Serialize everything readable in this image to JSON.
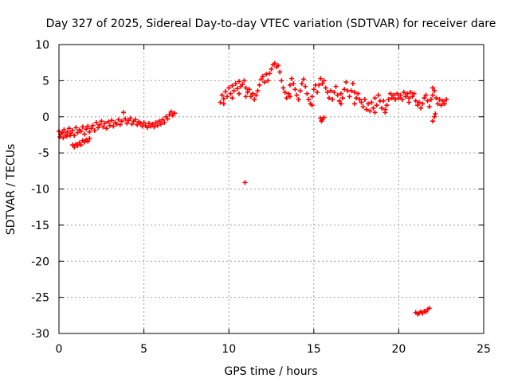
{
  "chart_data": {
    "type": "scatter",
    "title": "Day 327 of 2025, Sidereal Day-to-day VTEC variation (SDTVAR) for receiver dare",
    "xlabel": "GPS time / hours",
    "ylabel": "SDTVAR / TECUs",
    "xlim": [
      0,
      25
    ],
    "ylim": [
      -30,
      10
    ],
    "xticks": [
      0,
      5,
      10,
      15,
      20,
      25
    ],
    "yticks": [
      10,
      5,
      0,
      -5,
      -10,
      -15,
      -20,
      -25,
      -30
    ],
    "grid": true,
    "marker": "+",
    "series_color": "#ff0000",
    "series": [
      {
        "name": "SDTVAR",
        "points": [
          [
            0.0,
            -2.0
          ],
          [
            0.1,
            -2.4
          ],
          [
            0.2,
            -2.2
          ],
          [
            0.3,
            -1.8
          ],
          [
            0.4,
            -2.5
          ],
          [
            0.5,
            -2.1
          ],
          [
            0.6,
            -1.6
          ],
          [
            0.7,
            -2.3
          ],
          [
            0.8,
            -1.9
          ],
          [
            0.9,
            -2.6
          ],
          [
            1.0,
            -1.5
          ],
          [
            1.1,
            -2.2
          ],
          [
            1.2,
            -1.8
          ],
          [
            1.3,
            -2.0
          ],
          [
            1.4,
            -1.4
          ],
          [
            1.5,
            -2.4
          ],
          [
            1.6,
            -1.7
          ],
          [
            1.7,
            -1.3
          ],
          [
            1.8,
            -2.1
          ],
          [
            1.9,
            -1.6
          ],
          [
            2.0,
            -1.2
          ],
          [
            2.1,
            -1.9
          ],
          [
            2.2,
            -0.8
          ],
          [
            2.3,
            -1.5
          ],
          [
            2.4,
            -1.1
          ],
          [
            2.5,
            -0.6
          ],
          [
            2.6,
            -1.4
          ],
          [
            2.7,
            -0.9
          ],
          [
            2.8,
            -1.6
          ],
          [
            2.9,
            -0.7
          ],
          [
            3.0,
            -1.2
          ],
          [
            3.1,
            -0.5
          ],
          [
            3.2,
            -1.3
          ],
          [
            3.3,
            -0.8
          ],
          [
            3.4,
            -1.0
          ],
          [
            3.5,
            -0.4
          ],
          [
            3.6,
            -1.1
          ],
          [
            3.7,
            -0.6
          ],
          [
            3.8,
            0.6
          ],
          [
            3.9,
            -0.3
          ],
          [
            4.0,
            -0.9
          ],
          [
            4.1,
            -0.5
          ],
          [
            4.2,
            -0.2
          ],
          [
            4.3,
            -1.0
          ],
          [
            4.4,
            -0.6
          ],
          [
            4.5,
            -0.4
          ],
          [
            4.6,
            -1.1
          ],
          [
            4.7,
            -0.7
          ],
          [
            4.8,
            -0.9
          ],
          [
            4.9,
            -1.3
          ],
          [
            5.0,
            -0.8
          ],
          [
            5.1,
            -1.2
          ],
          [
            5.2,
            -1.5
          ],
          [
            5.3,
            -0.9
          ],
          [
            5.4,
            -1.3
          ],
          [
            5.5,
            -1.0
          ],
          [
            5.6,
            -1.4
          ],
          [
            5.7,
            -0.8
          ],
          [
            5.8,
            -1.2
          ],
          [
            5.9,
            -0.6
          ],
          [
            6.0,
            -1.0
          ],
          [
            6.1,
            -0.4
          ],
          [
            6.2,
            -0.8
          ],
          [
            6.3,
            0.0
          ],
          [
            6.4,
            -0.3
          ],
          [
            6.5,
            0.3
          ],
          [
            6.6,
            0.7
          ],
          [
            6.7,
            0.2
          ],
          [
            6.8,
            0.5
          ],
          [
            0.8,
            -3.9
          ],
          [
            0.9,
            -4.2
          ],
          [
            1.0,
            -3.8
          ],
          [
            1.1,
            -4.0
          ],
          [
            1.2,
            -3.6
          ],
          [
            1.3,
            -3.9
          ],
          [
            1.4,
            -3.3
          ],
          [
            1.5,
            -3.5
          ],
          [
            1.6,
            -3.2
          ],
          [
            1.7,
            -3.4
          ],
          [
            1.8,
            -3.0
          ],
          [
            0.05,
            -2.8
          ],
          [
            0.25,
            -2.9
          ],
          [
            0.45,
            -2.7
          ],
          [
            0.65,
            -2.6
          ],
          [
            9.5,
            2.0
          ],
          [
            9.6,
            3.0
          ],
          [
            9.7,
            2.5
          ],
          [
            9.8,
            3.5
          ],
          [
            9.9,
            2.8
          ],
          [
            10.0,
            4.0
          ],
          [
            10.1,
            3.2
          ],
          [
            10.2,
            4.3
          ],
          [
            10.3,
            3.6
          ],
          [
            10.4,
            4.6
          ],
          [
            10.5,
            3.9
          ],
          [
            10.6,
            4.9
          ],
          [
            10.7,
            4.2
          ],
          [
            10.8,
            4.5
          ],
          [
            10.9,
            5.0
          ],
          [
            11.0,
            4.0
          ],
          [
            11.1,
            3.4
          ],
          [
            11.2,
            3.8
          ],
          [
            11.3,
            2.8
          ],
          [
            11.4,
            3.2
          ],
          [
            11.5,
            2.4
          ],
          [
            11.6,
            3.0
          ],
          [
            11.7,
            3.6
          ],
          [
            11.8,
            4.4
          ],
          [
            11.9,
            5.2
          ],
          [
            12.0,
            5.6
          ],
          [
            12.1,
            4.8
          ],
          [
            12.2,
            5.9
          ],
          [
            12.3,
            5.0
          ],
          [
            12.4,
            6.0
          ],
          [
            12.5,
            6.6
          ],
          [
            12.6,
            7.2
          ],
          [
            12.7,
            7.4
          ],
          [
            12.8,
            6.9
          ],
          [
            12.9,
            7.1
          ],
          [
            13.0,
            6.2
          ],
          [
            13.1,
            5.0
          ],
          [
            13.2,
            4.0
          ],
          [
            13.3,
            3.4
          ],
          [
            13.4,
            2.6
          ],
          [
            13.5,
            3.2
          ],
          [
            13.6,
            4.4
          ],
          [
            13.7,
            5.3
          ],
          [
            13.8,
            4.6
          ],
          [
            13.9,
            3.8
          ],
          [
            14.0,
            3.0
          ],
          [
            14.1,
            2.4
          ],
          [
            14.2,
            3.6
          ],
          [
            14.3,
            4.6
          ],
          [
            14.4,
            5.2
          ],
          [
            14.5,
            4.2
          ],
          [
            14.6,
            3.2
          ],
          [
            14.7,
            2.4
          ],
          [
            14.8,
            1.8
          ],
          [
            14.9,
            2.8
          ],
          [
            15.0,
            3.8
          ],
          [
            15.1,
            4.4
          ],
          [
            15.2,
            3.4
          ],
          [
            15.3,
            4.4
          ],
          [
            15.4,
            5.3
          ],
          [
            15.5,
            4.6
          ],
          [
            15.6,
            5.0
          ],
          [
            15.7,
            4.0
          ],
          [
            15.8,
            3.4
          ],
          [
            15.9,
            2.6
          ],
          [
            16.0,
            3.6
          ],
          [
            16.1,
            2.4
          ],
          [
            16.2,
            3.4
          ],
          [
            16.3,
            4.2
          ],
          [
            16.4,
            3.0
          ],
          [
            16.5,
            2.2
          ],
          [
            16.6,
            3.2
          ],
          [
            16.7,
            2.6
          ],
          [
            16.8,
            3.8
          ],
          [
            16.9,
            4.8
          ],
          [
            17.0,
            3.6
          ],
          [
            17.1,
            2.8
          ],
          [
            17.2,
            3.6
          ],
          [
            17.3,
            4.6
          ],
          [
            17.4,
            3.4
          ],
          [
            17.5,
            2.6
          ],
          [
            17.6,
            3.2
          ],
          [
            17.7,
            2.4
          ],
          [
            17.8,
            2.0
          ],
          [
            17.9,
            1.4
          ],
          [
            18.0,
            2.4
          ],
          [
            18.1,
            1.0
          ],
          [
            18.2,
            1.8
          ],
          [
            18.3,
            0.8
          ],
          [
            18.4,
            2.0
          ],
          [
            18.5,
            1.2
          ],
          [
            18.6,
            2.6
          ],
          [
            18.7,
            1.6
          ],
          [
            18.8,
            3.0
          ],
          [
            18.9,
            2.2
          ],
          [
            19.0,
            1.2
          ],
          [
            19.1,
            2.2
          ],
          [
            19.2,
            1.0
          ],
          [
            19.3,
            1.6
          ],
          [
            19.4,
            2.4
          ],
          [
            19.5,
            3.2
          ],
          [
            19.6,
            2.6
          ],
          [
            19.7,
            3.0
          ],
          [
            19.8,
            2.4
          ],
          [
            19.9,
            3.2
          ],
          [
            20.0,
            2.6
          ],
          [
            20.1,
            3.0
          ],
          [
            20.2,
            2.4
          ],
          [
            20.3,
            3.4
          ],
          [
            20.4,
            2.8
          ],
          [
            20.5,
            3.2
          ],
          [
            20.6,
            2.6
          ],
          [
            20.7,
            3.4
          ],
          [
            20.8,
            2.8
          ],
          [
            20.9,
            3.2
          ],
          [
            21.0,
            2.2
          ],
          [
            21.1,
            1.6
          ],
          [
            21.2,
            2.0
          ],
          [
            21.3,
            1.2
          ],
          [
            21.4,
            1.8
          ],
          [
            21.5,
            2.6
          ],
          [
            21.6,
            3.0
          ],
          [
            21.7,
            2.2
          ],
          [
            21.8,
            1.4
          ],
          [
            21.9,
            2.4
          ],
          [
            22.0,
            3.0
          ],
          [
            22.1,
            3.6
          ],
          [
            22.2,
            2.6
          ],
          [
            22.3,
            1.8
          ],
          [
            22.4,
            2.4
          ],
          [
            22.5,
            1.6
          ],
          [
            22.6,
            2.2
          ],
          [
            22.7,
            1.8
          ],
          [
            22.8,
            2.4
          ],
          [
            9.7,
            1.8
          ],
          [
            10.2,
            2.6
          ],
          [
            10.6,
            3.2
          ],
          [
            11.0,
            2.8
          ],
          [
            13.6,
            2.8
          ],
          [
            14.9,
            1.6
          ],
          [
            16.6,
            1.8
          ],
          [
            17.4,
            1.8
          ],
          [
            18.6,
            0.6
          ],
          [
            19.2,
            0.6
          ],
          [
            20.6,
            2.0
          ],
          [
            22.0,
            4.0
          ],
          [
            22.1,
            0.0
          ],
          [
            22.0,
            -0.6
          ],
          [
            22.15,
            0.4
          ],
          [
            15.4,
            -0.2
          ],
          [
            15.5,
            -0.4
          ],
          [
            15.6,
            -0.1
          ],
          [
            15.45,
            -0.6
          ],
          [
            10.95,
            -9.1
          ],
          [
            21.0,
            -27.1
          ],
          [
            21.1,
            -27.3
          ],
          [
            21.2,
            -27.2
          ],
          [
            21.3,
            -27.0
          ],
          [
            21.4,
            -27.2
          ],
          [
            21.5,
            -26.9
          ],
          [
            21.6,
            -27.0
          ],
          [
            21.7,
            -26.7
          ],
          [
            21.8,
            -26.5
          ]
        ]
      }
    ]
  }
}
